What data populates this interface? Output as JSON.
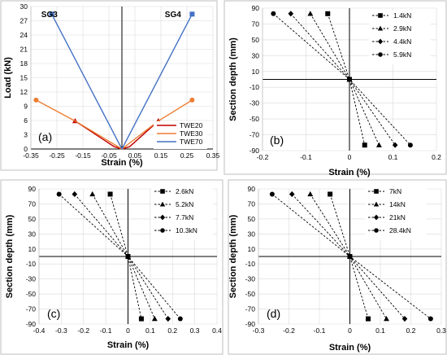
{
  "chart_data": [
    {
      "type": "line",
      "panel_label": "(a)",
      "xlabel": "Strain (%)",
      "ylabel": "Load (kN)",
      "xlim": [
        -0.35,
        0.35
      ],
      "ylim": [
        0,
        30
      ],
      "xticks": [
        -0.35,
        -0.25,
        -0.15,
        -0.05,
        0.05,
        0.15,
        0.25,
        0.35
      ],
      "yticks": [
        0,
        3,
        6,
        9,
        12,
        15,
        18,
        21,
        24,
        27,
        30
      ],
      "xtick_labels": [
        "-0.35",
        "-0.25",
        "-0.15",
        "-0.05",
        "0.05",
        "0.15",
        "0.25",
        "0.35"
      ],
      "ytick_labels": [
        "0",
        "3",
        "6",
        "9",
        "12",
        "15",
        "18",
        "21",
        "24",
        "27",
        "30"
      ],
      "annotations": [
        "SG3",
        "SG4"
      ],
      "legend_position": "bottom-right",
      "series": [
        {
          "name": "TWE20",
          "color": "#c00000",
          "marker": "triangle",
          "x": [
            -0.18,
            -0.03,
            0.0,
            0.03,
            0.14
          ],
          "y": [
            5.9,
            0.5,
            0,
            0.5,
            5.9
          ]
        },
        {
          "name": "TWE30",
          "color": "#ed7d31",
          "marker": "circle",
          "x": [
            -0.33,
            -0.18,
            0.0,
            0.14,
            0.27
          ],
          "y": [
            10.3,
            5.9,
            0,
            5.9,
            10.3
          ]
        },
        {
          "name": "TWE70",
          "color": "#4472c4",
          "marker": "square",
          "x": [
            -0.27,
            0.0,
            0.27
          ],
          "y": [
            28.4,
            0,
            28.4
          ]
        }
      ]
    },
    {
      "type": "line",
      "panel_label": "(b)",
      "xlabel": "Strain (%)",
      "ylabel": "Section depth (mm)",
      "xlim": [
        -0.2,
        0.2
      ],
      "ylim": [
        -90,
        90
      ],
      "xticks": [
        -0.2,
        -0.1,
        0,
        0.1,
        0.2
      ],
      "yticks": [
        -90,
        -70,
        -50,
        -30,
        -10,
        10,
        30,
        50,
        70,
        90
      ],
      "xtick_labels": [
        "-0.2",
        "-0.1",
        "0",
        "0.1",
        "0.2"
      ],
      "ytick_labels": [
        "-90",
        "-70",
        "-50",
        "-30",
        "-10",
        "10",
        "30",
        "50",
        "70",
        "90"
      ],
      "legend_position": "top-right",
      "series": [
        {
          "name": "1.4kN",
          "marker": "square",
          "x": [
            -0.05,
            0.0,
            0.035
          ],
          "y": [
            83,
            0,
            -83
          ]
        },
        {
          "name": "2.9kN",
          "marker": "triangle",
          "x": [
            -0.09,
            0.0,
            0.068
          ],
          "y": [
            83,
            0,
            -83
          ]
        },
        {
          "name": "4.4kN",
          "marker": "diamond",
          "x": [
            -0.135,
            0.0,
            0.105
          ],
          "y": [
            83,
            0,
            -83
          ]
        },
        {
          "name": "5.9kN",
          "marker": "circle",
          "x": [
            -0.175,
            0.0,
            0.14
          ],
          "y": [
            83,
            0,
            -83
          ]
        }
      ]
    },
    {
      "type": "line",
      "panel_label": "(c)",
      "xlabel": "Strain (%)",
      "ylabel": "Section depth (mm)",
      "xlim": [
        -0.4,
        0.4
      ],
      "ylim": [
        -90,
        90
      ],
      "xticks": [
        -0.4,
        -0.3,
        -0.2,
        -0.1,
        0,
        0.1,
        0.2,
        0.3,
        0.4
      ],
      "yticks": [
        -90,
        -70,
        -50,
        -30,
        -10,
        10,
        30,
        50,
        70,
        90
      ],
      "xtick_labels": [
        "-0.4",
        "-0.3",
        "-0.2",
        "-0.1",
        "0",
        "0.1",
        "0.2",
        "0.3",
        "0.4"
      ],
      "ytick_labels": [
        "-90",
        "-70",
        "-50",
        "-30",
        "-10",
        "10",
        "30",
        "50",
        "70",
        "90"
      ],
      "legend_position": "top-right",
      "series": [
        {
          "name": "2.6kN",
          "marker": "square",
          "x": [
            -0.08,
            0.0,
            0.06
          ],
          "y": [
            83,
            0,
            -83
          ]
        },
        {
          "name": "5.2kN",
          "marker": "triangle",
          "x": [
            -0.16,
            0.0,
            0.12
          ],
          "y": [
            83,
            0,
            -83
          ]
        },
        {
          "name": "7.7kN",
          "marker": "diamond",
          "x": [
            -0.24,
            0.0,
            0.18
          ],
          "y": [
            83,
            0,
            -83
          ]
        },
        {
          "name": "10.3kN",
          "marker": "circle",
          "x": [
            -0.31,
            0.0,
            0.235
          ],
          "y": [
            83,
            0,
            -83
          ]
        }
      ]
    },
    {
      "type": "line",
      "panel_label": "(d)",
      "xlabel": "Strain (%)",
      "ylabel": "Section depth (mm)",
      "xlim": [
        -0.3,
        0.3
      ],
      "ylim": [
        -90,
        90
      ],
      "xticks": [
        -0.3,
        -0.2,
        -0.1,
        0,
        0.1,
        0.2,
        0.3
      ],
      "yticks": [
        -90,
        -70,
        -50,
        -30,
        -10,
        10,
        30,
        50,
        70,
        90
      ],
      "xtick_labels": [
        "-0.3",
        "-0.2",
        "-0.1",
        "0",
        "0.1",
        "0.2",
        "0.3"
      ],
      "ytick_labels": [
        "-90",
        "-70",
        "-50",
        "-30",
        "-10",
        "10",
        "30",
        "50",
        "70",
        "90"
      ],
      "legend_position": "top-right",
      "series": [
        {
          "name": "7kN",
          "marker": "square",
          "x": [
            -0.065,
            0.0,
            0.06
          ],
          "y": [
            83,
            0,
            -83
          ]
        },
        {
          "name": "14kN",
          "marker": "triangle",
          "x": [
            -0.13,
            0.0,
            0.12
          ],
          "y": [
            83,
            0,
            -83
          ]
        },
        {
          "name": "21kN",
          "marker": "diamond",
          "x": [
            -0.19,
            0.0,
            0.18
          ],
          "y": [
            83,
            0,
            -83
          ]
        },
        {
          "name": "28.4kN",
          "marker": "circle",
          "x": [
            -0.255,
            0.0,
            0.265
          ],
          "y": [
            83,
            0,
            -83
          ]
        }
      ]
    }
  ]
}
